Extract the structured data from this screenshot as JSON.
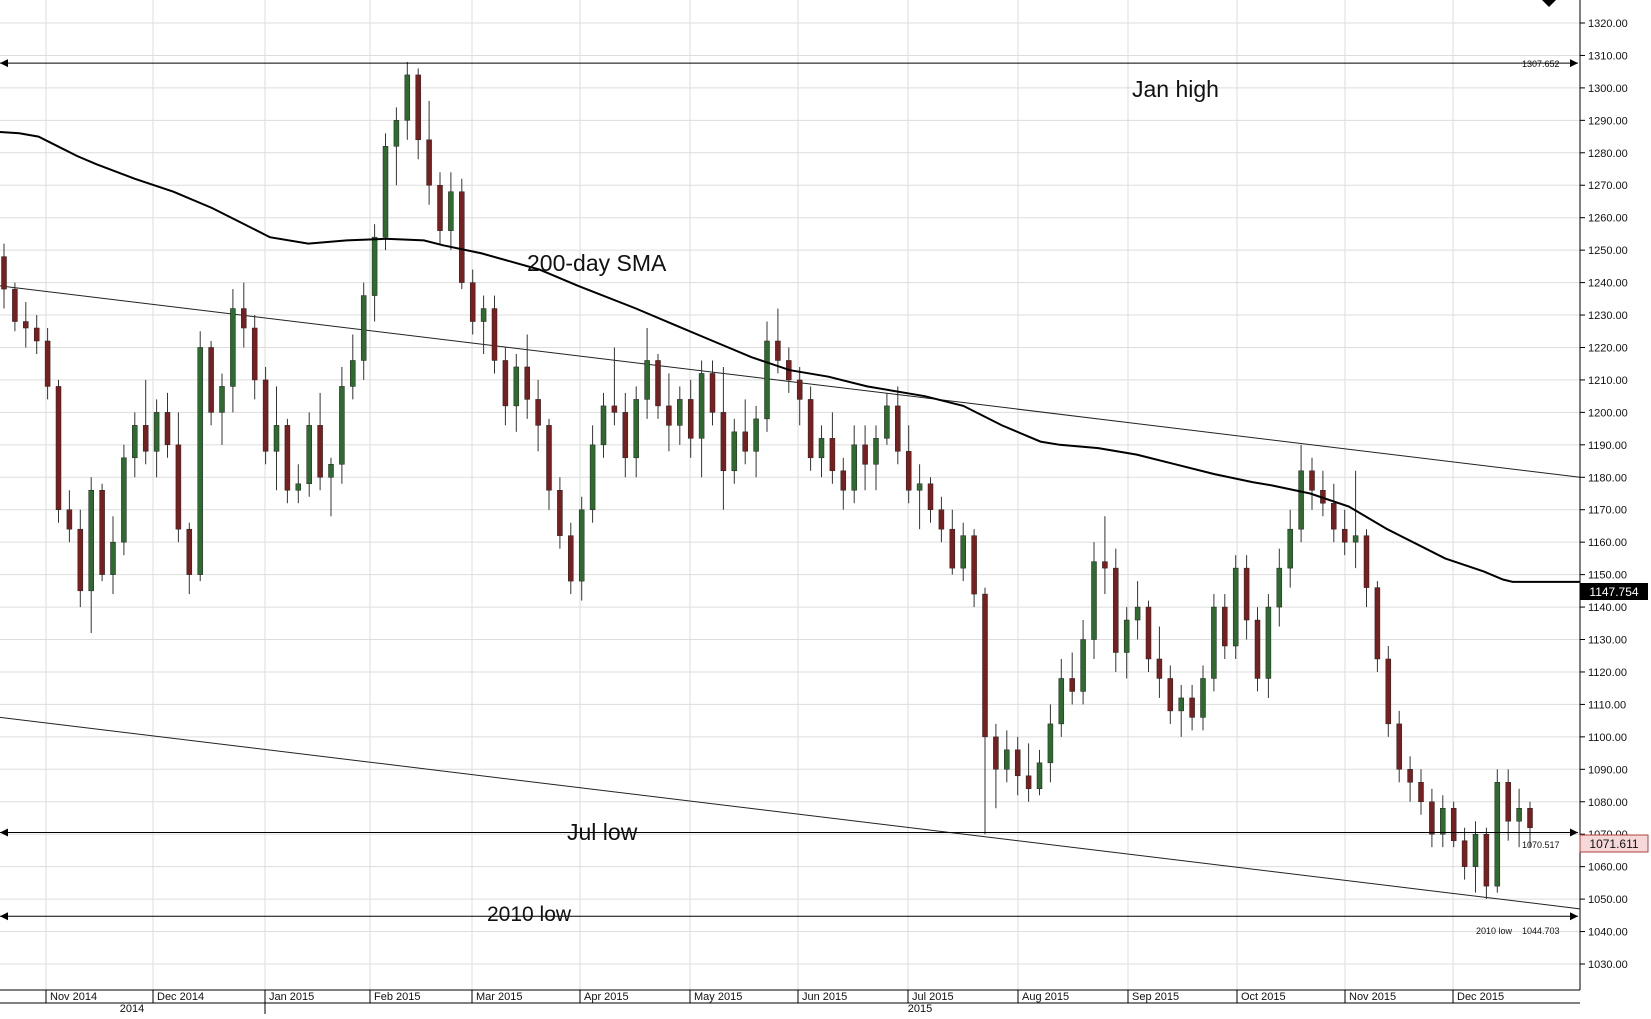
{
  "chart_data": {
    "type": "candlestick",
    "title": "",
    "xlabel": "",
    "ylabel": "",
    "ylim": [
      1030,
      1320
    ],
    "y_ticks": [
      "1320.00",
      "1310.00",
      "1300.00",
      "1290.00",
      "1280.00",
      "1270.00",
      "1260.00",
      "1250.00",
      "1240.00",
      "1230.00",
      "1220.00",
      "1210.00",
      "1200.00",
      "1190.00",
      "1180.00",
      "1170.00",
      "1160.00",
      "1150.00",
      "1140.00",
      "1130.00",
      "1120.00",
      "1110.00",
      "1100.00",
      "1090.00",
      "1080.00",
      "1070.00",
      "1060.00",
      "1050.00",
      "1040.00",
      "1030.00"
    ],
    "x_months": [
      "Nov 2014",
      "Dec 2014",
      "Jan 2015",
      "Feb 2015",
      "Mar 2015",
      "Apr 2015",
      "May 2015",
      "Jun 2015",
      "Jul 2015",
      "Aug 2015",
      "Sep 2015",
      "Oct 2015",
      "Nov 2015",
      "Dec 2015"
    ],
    "x_years": [
      "2014",
      "2015"
    ],
    "grid": true,
    "colors": {
      "up": "#2e6b2e",
      "down": "#7a1f1f",
      "wick": "#333333",
      "sma": "#000000",
      "grid": "#dddddd"
    },
    "series": [
      {
        "name": "200-day SMA",
        "values": [
          [
            0,
            1286.4
          ],
          [
            2,
            1286
          ],
          [
            4,
            1285
          ],
          [
            6,
            1282
          ],
          [
            8,
            1279
          ],
          [
            10,
            1276.5
          ],
          [
            14,
            1272
          ],
          [
            18,
            1268
          ],
          [
            22,
            1263
          ],
          [
            26,
            1257
          ],
          [
            28,
            1254
          ],
          [
            32,
            1252
          ],
          [
            36,
            1253
          ],
          [
            40,
            1253.5
          ],
          [
            44,
            1253
          ],
          [
            46,
            1251.5
          ],
          [
            50,
            1249
          ],
          [
            56,
            1244
          ],
          [
            60,
            1239
          ],
          [
            66,
            1232
          ],
          [
            70,
            1227
          ],
          [
            74,
            1222
          ],
          [
            78,
            1217
          ],
          [
            82,
            1213
          ],
          [
            86,
            1211
          ],
          [
            90,
            1208
          ],
          [
            96,
            1205
          ],
          [
            100,
            1202
          ],
          [
            104,
            1196
          ],
          [
            108,
            1191
          ],
          [
            110,
            1190
          ],
          [
            114,
            1189
          ],
          [
            118,
            1187
          ],
          [
            122,
            1184
          ],
          [
            126,
            1181
          ],
          [
            130,
            1178.5
          ],
          [
            132,
            1177.5
          ],
          [
            136,
            1175
          ],
          [
            140,
            1171
          ],
          [
            144,
            1164
          ],
          [
            148,
            1158
          ],
          [
            150,
            1155
          ],
          [
            154,
            1151
          ],
          [
            156,
            1148.5
          ],
          [
            157,
            1147.754
          ],
          [
            164,
            1147.754
          ]
        ]
      }
    ],
    "candles": [
      [
        0,
        1248,
        1252,
        1232,
        1238
      ],
      [
        1,
        1238,
        1240,
        1225,
        1228
      ],
      [
        2,
        1228,
        1234,
        1220,
        1226
      ],
      [
        3,
        1226,
        1230,
        1218,
        1222
      ],
      [
        4,
        1222,
        1226,
        1204,
        1208
      ],
      [
        5,
        1208,
        1210,
        1166,
        1170
      ],
      [
        6,
        1170,
        1176,
        1160,
        1164
      ],
      [
        7,
        1164,
        1170,
        1140,
        1145
      ],
      [
        8,
        1145,
        1180,
        1132,
        1176
      ],
      [
        9,
        1176,
        1178,
        1148,
        1150
      ],
      [
        10,
        1150,
        1168,
        1144,
        1160
      ],
      [
        11,
        1160,
        1190,
        1156,
        1186
      ],
      [
        12,
        1186,
        1200,
        1180,
        1196
      ],
      [
        13,
        1196,
        1210,
        1184,
        1188
      ],
      [
        14,
        1188,
        1204,
        1180,
        1200
      ],
      [
        15,
        1200,
        1206,
        1186,
        1190
      ],
      [
        16,
        1190,
        1200,
        1160,
        1164
      ],
      [
        17,
        1164,
        1166,
        1144,
        1150
      ],
      [
        18,
        1150,
        1225,
        1148,
        1220
      ],
      [
        19,
        1220,
        1222,
        1196,
        1200
      ],
      [
        20,
        1200,
        1212,
        1190,
        1208
      ],
      [
        21,
        1208,
        1238,
        1200,
        1232
      ],
      [
        22,
        1232,
        1240,
        1220,
        1226
      ],
      [
        23,
        1226,
        1230,
        1204,
        1210
      ],
      [
        24,
        1210,
        1214,
        1184,
        1188
      ],
      [
        25,
        1188,
        1208,
        1176,
        1196
      ],
      [
        26,
        1196,
        1198,
        1172,
        1176
      ],
      [
        27,
        1176,
        1184,
        1172,
        1178
      ],
      [
        28,
        1178,
        1200,
        1174,
        1196
      ],
      [
        29,
        1196,
        1206,
        1176,
        1180
      ],
      [
        30,
        1180,
        1186,
        1168,
        1184
      ],
      [
        31,
        1184,
        1214,
        1178,
        1208
      ],
      [
        32,
        1208,
        1224,
        1204,
        1216
      ],
      [
        33,
        1216,
        1240,
        1210,
        1236
      ],
      [
        34,
        1236,
        1258,
        1228,
        1254
      ],
      [
        35,
        1254,
        1286,
        1250,
        1282
      ],
      [
        36,
        1282,
        1294,
        1270,
        1290
      ],
      [
        37,
        1290,
        1308,
        1284,
        1304
      ],
      [
        38,
        1304,
        1306,
        1278,
        1284
      ],
      [
        39,
        1284,
        1296,
        1264,
        1270
      ],
      [
        40,
        1270,
        1274,
        1252,
        1256
      ],
      [
        41,
        1256,
        1274,
        1250,
        1268
      ],
      [
        42,
        1268,
        1272,
        1238,
        1240
      ],
      [
        43,
        1240,
        1244,
        1224,
        1228
      ],
      [
        44,
        1228,
        1236,
        1218,
        1232
      ],
      [
        45,
        1232,
        1236,
        1212,
        1216
      ],
      [
        46,
        1216,
        1220,
        1196,
        1202
      ],
      [
        47,
        1202,
        1218,
        1194,
        1214
      ],
      [
        48,
        1214,
        1224,
        1198,
        1204
      ],
      [
        49,
        1204,
        1210,
        1188,
        1196
      ],
      [
        50,
        1196,
        1198,
        1170,
        1176
      ],
      [
        51,
        1176,
        1180,
        1158,
        1162
      ],
      [
        52,
        1162,
        1166,
        1144,
        1148
      ],
      [
        53,
        1148,
        1174,
        1142,
        1170
      ],
      [
        54,
        1170,
        1196,
        1166,
        1190
      ],
      [
        55,
        1190,
        1206,
        1186,
        1202
      ],
      [
        56,
        1202,
        1220,
        1196,
        1200
      ],
      [
        57,
        1200,
        1206,
        1180,
        1186
      ],
      [
        58,
        1186,
        1208,
        1180,
        1204
      ],
      [
        59,
        1204,
        1226,
        1198,
        1216
      ],
      [
        60,
        1216,
        1218,
        1198,
        1202
      ],
      [
        61,
        1202,
        1212,
        1188,
        1196
      ],
      [
        62,
        1196,
        1208,
        1190,
        1204
      ],
      [
        63,
        1204,
        1210,
        1186,
        1192
      ],
      [
        64,
        1192,
        1216,
        1180,
        1212
      ],
      [
        65,
        1212,
        1216,
        1196,
        1200
      ],
      [
        66,
        1200,
        1214,
        1170,
        1182
      ],
      [
        67,
        1182,
        1198,
        1178,
        1194
      ],
      [
        68,
        1194,
        1204,
        1184,
        1188
      ],
      [
        69,
        1188,
        1202,
        1180,
        1198
      ],
      [
        70,
        1198,
        1228,
        1194,
        1222
      ],
      [
        71,
        1222,
        1232,
        1212,
        1216
      ],
      [
        72,
        1216,
        1220,
        1206,
        1210
      ],
      [
        73,
        1210,
        1214,
        1196,
        1204
      ],
      [
        74,
        1204,
        1208,
        1182,
        1186
      ],
      [
        75,
        1186,
        1196,
        1180,
        1192
      ],
      [
        76,
        1192,
        1200,
        1178,
        1182
      ],
      [
        77,
        1182,
        1186,
        1170,
        1176
      ],
      [
        78,
        1176,
        1196,
        1172,
        1190
      ],
      [
        79,
        1190,
        1196,
        1176,
        1184
      ],
      [
        80,
        1184,
        1196,
        1176,
        1192
      ],
      [
        81,
        1192,
        1206,
        1190,
        1202
      ],
      [
        82,
        1202,
        1208,
        1184,
        1188
      ],
      [
        83,
        1188,
        1196,
        1172,
        1176
      ],
      [
        84,
        1176,
        1184,
        1164,
        1178
      ],
      [
        85,
        1178,
        1180,
        1166,
        1170
      ],
      [
        86,
        1170,
        1174,
        1160,
        1164
      ],
      [
        87,
        1164,
        1170,
        1150,
        1152
      ],
      [
        88,
        1152,
        1166,
        1148,
        1162
      ],
      [
        89,
        1162,
        1164,
        1140,
        1144
      ],
      [
        90,
        1144,
        1146,
        1070,
        1100
      ],
      [
        91,
        1100,
        1104,
        1078,
        1090
      ],
      [
        92,
        1090,
        1102,
        1086,
        1096
      ],
      [
        93,
        1096,
        1100,
        1082,
        1088
      ],
      [
        94,
        1088,
        1098,
        1080,
        1084
      ],
      [
        95,
        1084,
        1096,
        1082,
        1092
      ],
      [
        96,
        1092,
        1110,
        1086,
        1104
      ],
      [
        97,
        1104,
        1124,
        1100,
        1118
      ],
      [
        98,
        1118,
        1126,
        1110,
        1114
      ],
      [
        99,
        1114,
        1136,
        1110,
        1130
      ],
      [
        100,
        1130,
        1160,
        1124,
        1154
      ],
      [
        101,
        1154,
        1168,
        1144,
        1152
      ],
      [
        102,
        1152,
        1158,
        1120,
        1126
      ],
      [
        103,
        1126,
        1140,
        1118,
        1136
      ],
      [
        104,
        1136,
        1148,
        1130,
        1140
      ],
      [
        105,
        1140,
        1142,
        1120,
        1124
      ],
      [
        106,
        1124,
        1134,
        1112,
        1118
      ],
      [
        107,
        1118,
        1122,
        1104,
        1108
      ],
      [
        108,
        1108,
        1116,
        1100,
        1112
      ],
      [
        109,
        1112,
        1116,
        1102,
        1106
      ],
      [
        110,
        1106,
        1122,
        1102,
        1118
      ],
      [
        111,
        1118,
        1144,
        1114,
        1140
      ],
      [
        112,
        1140,
        1144,
        1124,
        1128
      ],
      [
        113,
        1128,
        1156,
        1124,
        1152
      ],
      [
        114,
        1152,
        1156,
        1130,
        1136
      ],
      [
        115,
        1136,
        1140,
        1114,
        1118
      ],
      [
        116,
        1118,
        1144,
        1112,
        1140
      ],
      [
        117,
        1140,
        1158,
        1134,
        1152
      ],
      [
        118,
        1152,
        1170,
        1146,
        1164
      ],
      [
        119,
        1164,
        1190,
        1160,
        1182
      ],
      [
        120,
        1182,
        1186,
        1170,
        1176
      ],
      [
        121,
        1176,
        1182,
        1168,
        1172
      ],
      [
        122,
        1172,
        1178,
        1160,
        1164
      ],
      [
        123,
        1164,
        1170,
        1156,
        1160
      ],
      [
        124,
        1160,
        1182,
        1152,
        1162
      ],
      [
        125,
        1162,
        1164,
        1140,
        1146
      ],
      [
        126,
        1146,
        1148,
        1120,
        1124
      ],
      [
        127,
        1124,
        1128,
        1100,
        1104
      ],
      [
        128,
        1104,
        1108,
        1086,
        1090
      ],
      [
        129,
        1090,
        1094,
        1080,
        1086
      ],
      [
        130,
        1086,
        1090,
        1076,
        1080
      ],
      [
        131,
        1080,
        1084,
        1066,
        1070
      ],
      [
        132,
        1070,
        1082,
        1066,
        1078
      ],
      [
        133,
        1078,
        1080,
        1066,
        1068
      ],
      [
        134,
        1068,
        1072,
        1056,
        1060
      ],
      [
        135,
        1060,
        1074,
        1052,
        1070
      ],
      [
        136,
        1070,
        1072,
        1050,
        1054
      ],
      [
        137,
        1054,
        1090,
        1052,
        1086
      ],
      [
        138,
        1086,
        1090,
        1068,
        1074
      ],
      [
        139,
        1074,
        1084,
        1066,
        1078
      ],
      [
        140,
        1078,
        1080,
        1066,
        1072
      ]
    ]
  },
  "labels": {
    "jan_high": "Jan high",
    "sma": "200-day SMA",
    "jul_low": "Jul low",
    "low_2010": "2010 low",
    "low_2010_small": "2010 low"
  },
  "price_tags": {
    "jan_high": "1307.652",
    "jul_low": "1070.517",
    "low_2010": "1044.703",
    "sma": "1147.754",
    "last": "1071.611"
  }
}
